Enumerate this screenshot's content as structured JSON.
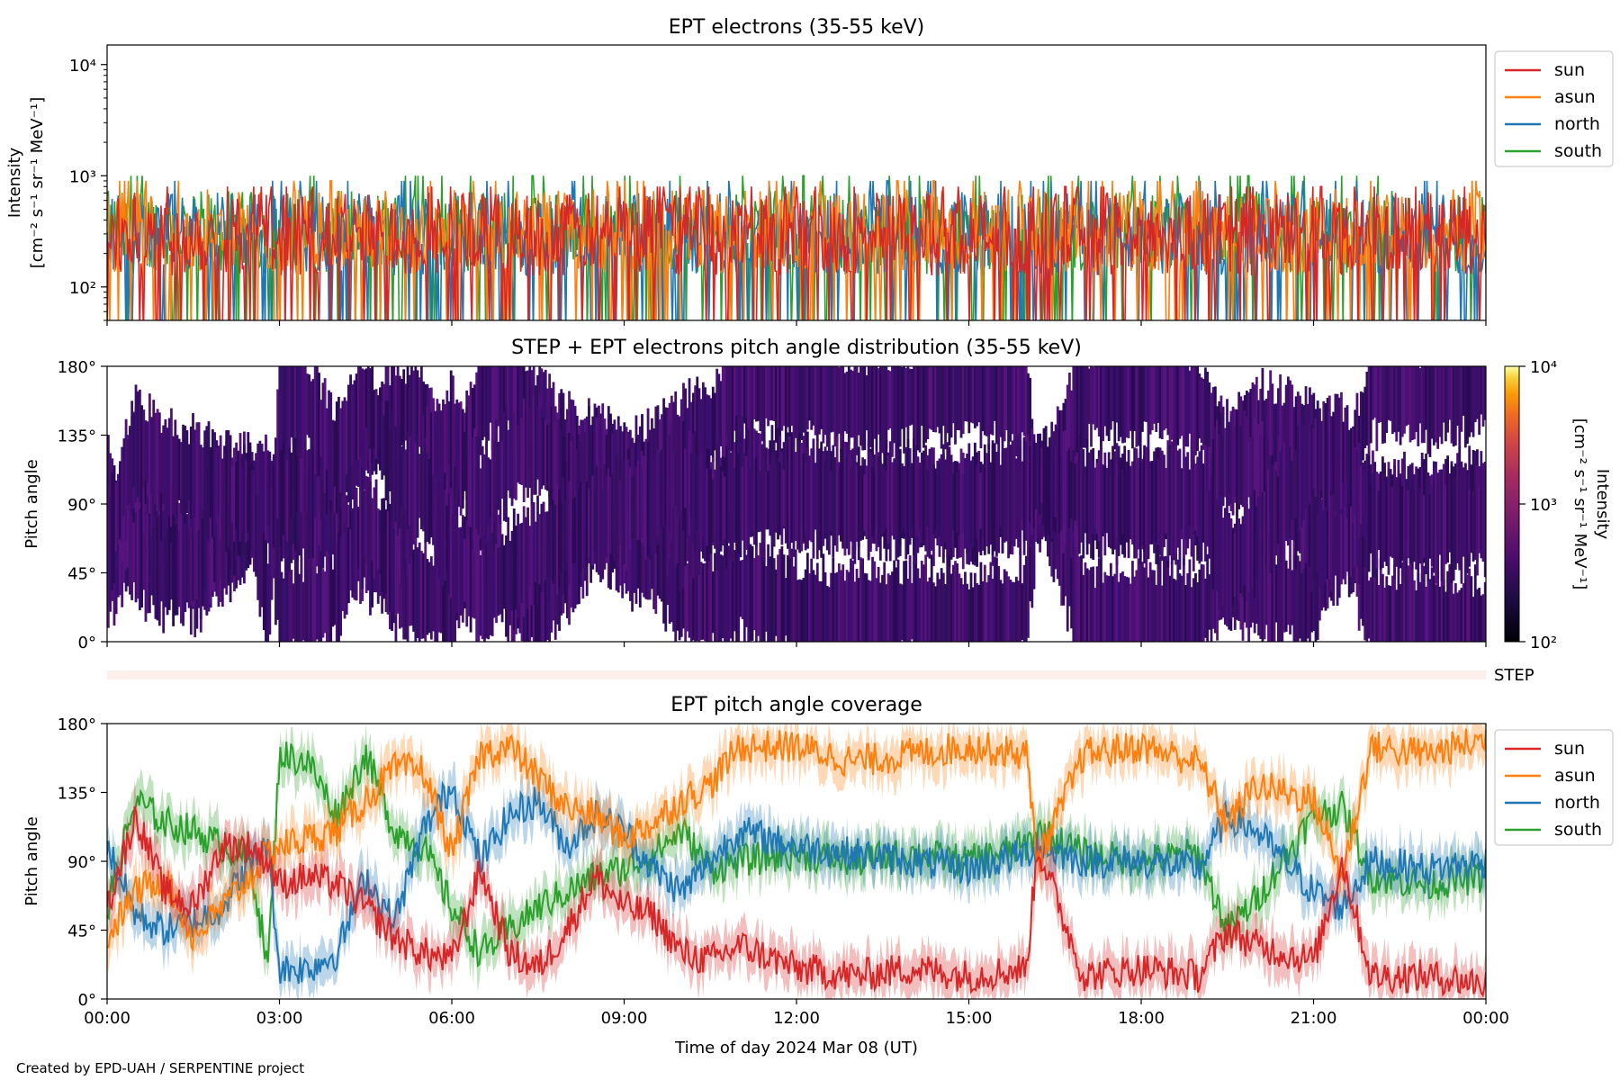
{
  "credit": "Created by EPD-UAH / SERPENTINE project",
  "colors": {
    "sun": "#d62728",
    "asun": "#ff7f0e",
    "north": "#1f77b4",
    "south": "#2ca02c",
    "pad": "#3b0f6f",
    "step_band": "#fdf0ec"
  },
  "chart_data": [
    {
      "id": "intensity",
      "type": "line",
      "title": "EPT electrons (35-55 keV)",
      "ylabel_line1": "Intensity",
      "ylabel_line2": "[cm⁻² s⁻¹ sr⁻¹ MeV⁻¹]",
      "yscale": "log",
      "ylim": [
        50,
        15000
      ],
      "xlim_hours": [
        0,
        24
      ],
      "ytick_labels": [
        "10²",
        "10³",
        "10⁴"
      ],
      "ytick_values": [
        100,
        1000,
        10000
      ],
      "legend_position": "outside-right",
      "series": [
        {
          "name": "sun",
          "typical_range": [
            50,
            800
          ],
          "median": 300
        },
        {
          "name": "asun",
          "typical_range": [
            50,
            900
          ],
          "median": 320
        },
        {
          "name": "north",
          "typical_range": [
            50,
            900
          ],
          "median": 300
        },
        {
          "name": "south",
          "typical_range": [
            50,
            1000
          ],
          "median": 310
        }
      ]
    },
    {
      "id": "pad",
      "type": "heatmap",
      "title": "STEP + EPT electrons pitch angle distribution (35-55 keV)",
      "ylabel": "Pitch angle",
      "ylim": [
        0,
        180
      ],
      "xlim_hours": [
        0,
        24
      ],
      "ytick_labels": [
        "0°",
        "45°",
        "90°",
        "135°",
        "180°"
      ],
      "colorbar": {
        "scale": "log",
        "range": [
          100,
          10000
        ],
        "tick_labels": [
          "10²",
          "10³",
          "10⁴"
        ],
        "label": "Intensity",
        "label_units": "[cm⁻² s⁻¹ sr⁻¹ MeV⁻¹]"
      },
      "typical_intensity": 300
    },
    {
      "id": "step",
      "type": "heatmap",
      "label": "STEP"
    },
    {
      "id": "coverage",
      "type": "line",
      "title": "EPT pitch angle coverage",
      "ylabel": "Pitch angle",
      "ylim": [
        0,
        180
      ],
      "xlim_hours": [
        0,
        24
      ],
      "ytick_labels": [
        "0°",
        "45°",
        "90°",
        "135°",
        "180°"
      ],
      "xtick_labels": [
        "00:00",
        "03:00",
        "06:00",
        "09:00",
        "12:00",
        "15:00",
        "18:00",
        "21:00",
        "00:00"
      ],
      "xtick_hours": [
        0,
        3,
        6,
        9,
        12,
        15,
        18,
        21,
        24
      ],
      "xlabel": "Time of day 2024 Mar 08 (UT)",
      "legend_position": "outside-right",
      "series": [
        {
          "name": "sun",
          "x": [
            0,
            0.5,
            1,
            1.5,
            2,
            2.5,
            2.8,
            3,
            3.5,
            4,
            4.5,
            5,
            5.5,
            6,
            6.5,
            7,
            7.5,
            8,
            8.5,
            9,
            9.5,
            10,
            10.5,
            11,
            12,
            13,
            14,
            15,
            16,
            16.2,
            17,
            18,
            19,
            19.5,
            20,
            21,
            21.5,
            22,
            23,
            24
          ],
          "y": [
            60,
            120,
            70,
            60,
            100,
            100,
            90,
            75,
            80,
            75,
            60,
            40,
            30,
            25,
            85,
            30,
            20,
            45,
            80,
            60,
            55,
            30,
            25,
            35,
            20,
            15,
            20,
            15,
            20,
            100,
            15,
            20,
            15,
            45,
            35,
            25,
            90,
            15,
            15,
            10
          ]
        },
        {
          "name": "asun",
          "x": [
            0,
            0.5,
            1,
            1.5,
            2,
            2.5,
            2.8,
            3,
            3.5,
            4,
            4.5,
            5,
            5.5,
            6,
            6.5,
            7,
            7.5,
            8,
            8.5,
            9,
            9.5,
            10,
            10.5,
            11,
            12,
            13,
            14,
            15,
            16,
            16.2,
            17,
            18,
            19,
            19.5,
            20,
            21,
            21.5,
            22,
            23,
            24
          ],
          "y": [
            40,
            70,
            80,
            40,
            60,
            80,
            95,
            100,
            105,
            110,
            130,
            150,
            150,
            95,
            160,
            165,
            145,
            125,
            120,
            105,
            115,
            130,
            140,
            165,
            165,
            155,
            160,
            165,
            160,
            90,
            160,
            165,
            155,
            115,
            140,
            130,
            80,
            165,
            160,
            170
          ]
        },
        {
          "name": "north",
          "x": [
            0,
            0.5,
            1,
            1.5,
            2,
            2.5,
            2.8,
            3,
            3.5,
            4,
            4.5,
            5,
            5.5,
            6,
            6.5,
            7,
            7.5,
            8,
            8.5,
            9,
            9.5,
            10,
            10.5,
            11,
            12,
            13,
            14,
            15,
            16,
            16.2,
            17,
            18,
            19,
            19.5,
            20,
            21,
            21.5,
            22,
            23,
            24
          ],
          "y": [
            100,
            55,
            45,
            50,
            60,
            90,
            100,
            20,
            20,
            30,
            80,
            50,
            110,
            140,
            90,
            120,
            130,
            100,
            120,
            110,
            85,
            70,
            90,
            110,
            100,
            95,
            90,
            85,
            95,
            100,
            90,
            90,
            85,
            120,
            110,
            70,
            60,
            90,
            85,
            90
          ]
        },
        {
          "name": "south",
          "x": [
            0,
            0.5,
            1,
            1.5,
            2,
            2.5,
            2.8,
            3,
            3.5,
            4,
            4.5,
            5,
            5.5,
            6,
            6.5,
            7,
            7.5,
            8,
            8.5,
            9,
            9.5,
            10,
            10.5,
            11,
            12,
            13,
            14,
            15,
            16,
            16.2,
            17,
            18,
            19,
            19.5,
            20,
            21,
            21.5,
            22,
            23,
            24
          ],
          "y": [
            60,
            130,
            115,
            110,
            100,
            90,
            20,
            160,
            155,
            120,
            160,
            110,
            100,
            60,
            30,
            45,
            60,
            70,
            80,
            85,
            95,
            110,
            85,
            90,
            95,
            90,
            95,
            90,
            100,
            110,
            95,
            90,
            95,
            45,
            65,
            120,
            125,
            80,
            75,
            80
          ]
        }
      ]
    }
  ]
}
